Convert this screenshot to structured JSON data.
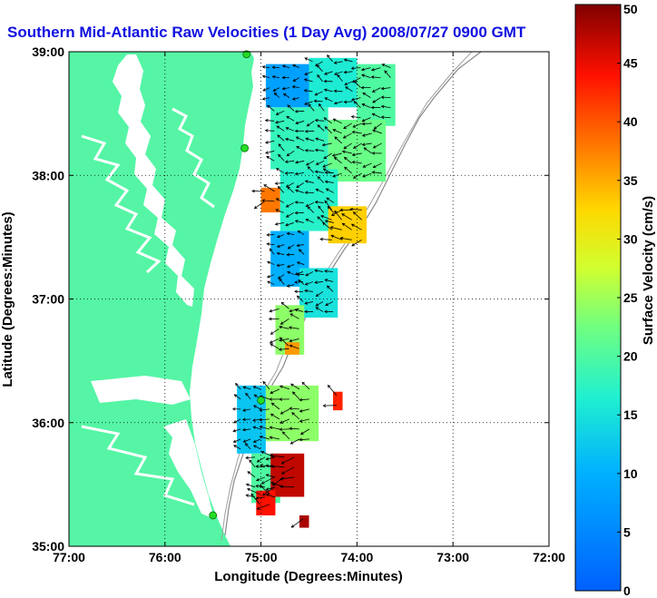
{
  "chart_data": {
    "type": "heatmap",
    "title": "Southern Mid-Atlantic Raw Velocities (1 Day Avg) 2008/07/27 0900 GMT",
    "xlabel": "Longitude (Degrees:Minutes)",
    "ylabel": "Latitude (Degrees:Minutes)",
    "xlim": [
      -77,
      -72
    ],
    "ylim": [
      35,
      39
    ],
    "x_ticks": [
      {
        "value": -77,
        "label": "77:00"
      },
      {
        "value": -76,
        "label": "76:00"
      },
      {
        "value": -75,
        "label": "75:00"
      },
      {
        "value": -74,
        "label": "74:00"
      },
      {
        "value": -73,
        "label": "73:00"
      },
      {
        "value": -72,
        "label": "72:00"
      }
    ],
    "y_ticks": [
      {
        "value": 35,
        "label": "35:00"
      },
      {
        "value": 36,
        "label": "36:00"
      },
      {
        "value": 37,
        "label": "37:00"
      },
      {
        "value": 38,
        "label": "38:00"
      },
      {
        "value": 39,
        "label": "39:00"
      }
    ],
    "grid": true,
    "colorbar": {
      "label": "Surface Velocity (cm/s)",
      "min": 0,
      "max": 50,
      "ticks": [
        {
          "value": 0,
          "label": "0"
        },
        {
          "value": 5,
          "label": "5"
        },
        {
          "value": 10,
          "label": "10"
        },
        {
          "value": 15,
          "label": "15"
        },
        {
          "value": 20,
          "label": "20"
        },
        {
          "value": 25,
          "label": "25"
        },
        {
          "value": 30,
          "label": "30"
        },
        {
          "value": 35,
          "label": "35"
        },
        {
          "value": 40,
          "label": "40"
        },
        {
          "value": 45,
          "label": "45"
        },
        {
          "value": 50,
          "label": "50"
        }
      ],
      "colormap": "jet"
    },
    "land_color": "#55f5a5",
    "stations": [
      {
        "lon": -75.15,
        "lat": 38.98
      },
      {
        "lon": -75.17,
        "lat": 38.22
      },
      {
        "lon": -75.0,
        "lat": 36.18
      },
      {
        "lon": -75.5,
        "lat": 35.25
      }
    ],
    "velocity_regions": [
      {
        "lon": [
          -74.95,
          -74.5
        ],
        "lat": [
          38.55,
          38.9
        ],
        "speed": 8
      },
      {
        "lon": [
          -74.5,
          -74.0
        ],
        "lat": [
          38.55,
          38.95
        ],
        "speed": 16
      },
      {
        "lon": [
          -74.0,
          -73.6
        ],
        "lat": [
          38.4,
          38.9
        ],
        "speed": 20
      },
      {
        "lon": [
          -74.9,
          -74.3
        ],
        "lat": [
          38.05,
          38.55
        ],
        "speed": 18
      },
      {
        "lon": [
          -74.3,
          -73.7
        ],
        "lat": [
          37.95,
          38.45
        ],
        "speed": 22
      },
      {
        "lon": [
          -75.0,
          -74.8
        ],
        "lat": [
          37.7,
          37.9
        ],
        "speed": 38
      },
      {
        "lon": [
          -74.8,
          -74.2
        ],
        "lat": [
          37.55,
          38.05
        ],
        "speed": 17
      },
      {
        "lon": [
          -74.3,
          -73.9
        ],
        "lat": [
          37.45,
          37.75
        ],
        "speed": 33
      },
      {
        "lon": [
          -74.9,
          -74.5
        ],
        "lat": [
          37.1,
          37.55
        ],
        "speed": 10
      },
      {
        "lon": [
          -74.6,
          -74.2
        ],
        "lat": [
          36.85,
          37.25
        ],
        "speed": 15
      },
      {
        "lon": [
          -74.85,
          -74.55
        ],
        "lat": [
          36.55,
          36.95
        ],
        "speed": 24
      },
      {
        "lon": [
          -74.75,
          -74.6
        ],
        "lat": [
          36.55,
          36.65
        ],
        "speed": 36
      },
      {
        "lon": [
          -74.25,
          -74.15
        ],
        "lat": [
          36.1,
          36.25
        ],
        "speed": 43
      },
      {
        "lon": [
          -75.25,
          -74.95
        ],
        "lat": [
          35.75,
          36.3
        ],
        "speed": 12
      },
      {
        "lon": [
          -74.95,
          -74.4
        ],
        "lat": [
          35.85,
          36.3
        ],
        "speed": 24
      },
      {
        "lon": [
          -75.1,
          -74.8
        ],
        "lat": [
          35.35,
          35.75
        ],
        "speed": 20
      },
      {
        "lon": [
          -74.9,
          -74.55
        ],
        "lat": [
          35.4,
          35.75
        ],
        "speed": 47
      },
      {
        "lon": [
          -75.05,
          -74.85
        ],
        "lat": [
          35.25,
          35.45
        ],
        "speed": 44
      },
      {
        "lon": [
          -74.6,
          -74.5
        ],
        "lat": [
          35.15,
          35.25
        ],
        "speed": 48
      }
    ]
  }
}
